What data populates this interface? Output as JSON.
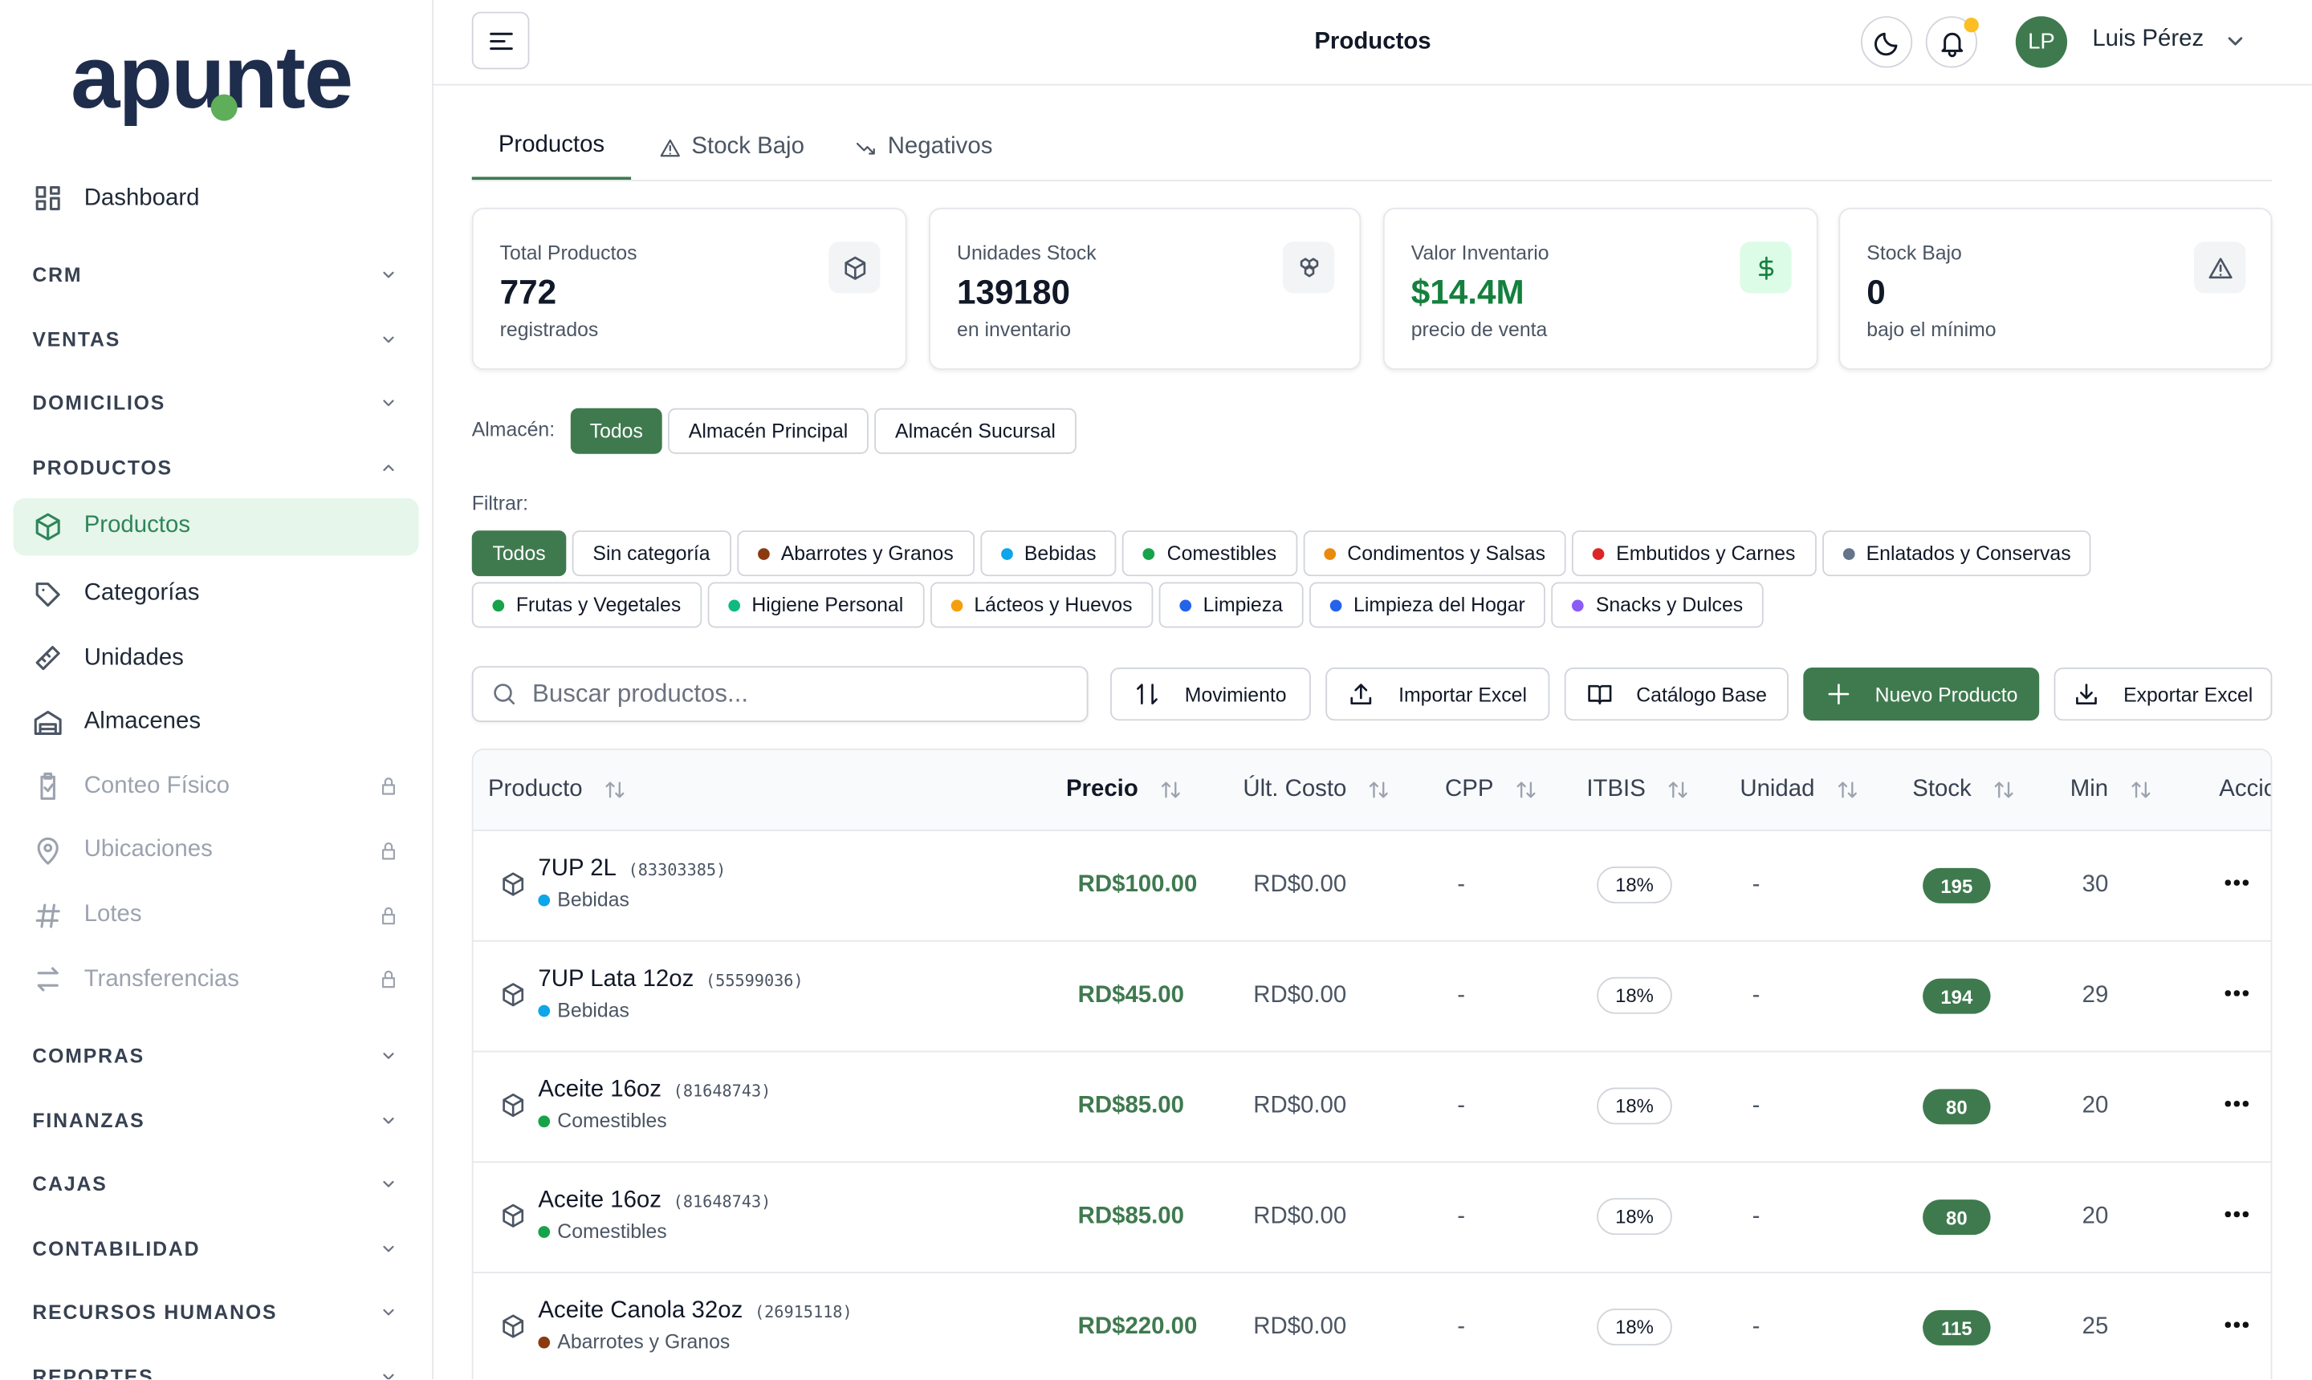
{
  "brand": "apunte",
  "header": {
    "title": "Productos",
    "user_initials": "LP",
    "user_name": "Luis Pérez"
  },
  "sidebar": [
    {
      "label": "Dashboard",
      "kind": "link"
    },
    {
      "label": "CRM",
      "kind": "section"
    },
    {
      "label": "VENTAS",
      "kind": "section"
    },
    {
      "label": "DOMICILIOS",
      "kind": "section"
    },
    {
      "label": "PRODUCTOS",
      "kind": "section",
      "expanded": true
    },
    {
      "label": "Productos",
      "kind": "link",
      "active": true
    },
    {
      "label": "Categorías",
      "kind": "link"
    },
    {
      "label": "Unidades",
      "kind": "link"
    },
    {
      "label": "Almacenes",
      "kind": "link"
    },
    {
      "label": "Conteo Físico",
      "kind": "link",
      "locked": true
    },
    {
      "label": "Ubicaciones",
      "kind": "link",
      "locked": true
    },
    {
      "label": "Lotes",
      "kind": "link",
      "locked": true
    },
    {
      "label": "Transferencias",
      "kind": "link",
      "locked": true
    },
    {
      "label": "COMPRAS",
      "kind": "section"
    },
    {
      "label": "FINANZAS",
      "kind": "section"
    },
    {
      "label": "CAJAS",
      "kind": "section"
    },
    {
      "label": "CONTABILIDAD",
      "kind": "section"
    },
    {
      "label": "RECURSOS HUMANOS",
      "kind": "section"
    },
    {
      "label": "REPORTES",
      "kind": "section"
    }
  ],
  "tabs": {
    "items": [
      "Productos",
      "Stock Bajo",
      "Negativos"
    ],
    "active": 0
  },
  "stats": [
    {
      "label": "Total Productos",
      "value": 772,
      "note": "registrados"
    },
    {
      "label": "Unidades Stock",
      "value": 139180,
      "note": "en inventario"
    },
    {
      "label": "Valor Inventario",
      "value": "$14.4M",
      "note": "precio de venta",
      "color": "#15803d"
    },
    {
      "label": "Stock Bajo",
      "value": 0,
      "note": "bajo el mínimo"
    }
  ],
  "warehouse": {
    "label": "Almacén:",
    "options": [
      "Todos",
      "Almacén Principal",
      "Almacén Sucursal"
    ],
    "selected": 0
  },
  "filter": {
    "label": "Filtrar:",
    "selected": 0,
    "options": [
      {
        "name": "Todos"
      },
      {
        "name": "Sin categoría"
      },
      {
        "name": "Abarrotes y Granos",
        "color": "#8b3a0f"
      },
      {
        "name": "Bebidas",
        "color": "#0ea5e9"
      },
      {
        "name": "Comestibles",
        "color": "#16a34a"
      },
      {
        "name": "Condimentos y Salsas",
        "color": "#ea8a0c"
      },
      {
        "name": "Embutidos y Carnes",
        "color": "#dc2626"
      },
      {
        "name": "Enlatados y Conservas",
        "color": "#64748b"
      },
      {
        "name": "Frutas y Vegetales",
        "color": "#16a34a"
      },
      {
        "name": "Higiene Personal",
        "color": "#10b981"
      },
      {
        "name": "Lácteos y Huevos",
        "color": "#f59e0b"
      },
      {
        "name": "Limpieza",
        "color": "#2563eb"
      },
      {
        "name": "Limpieza del Hogar",
        "color": "#2563eb"
      },
      {
        "name": "Snacks y Dulces",
        "color": "#8b5cf6"
      }
    ]
  },
  "toolbar": {
    "search_placeholder": "Buscar productos...",
    "buttons": [
      "Movimiento",
      "Importar Excel",
      "Catálogo Base",
      "Nuevo Producto",
      "Exportar Excel"
    ],
    "primary": 3
  },
  "table": {
    "columns": [
      "Producto",
      "Precio",
      "Últ. Costo",
      "CPP",
      "ITBIS",
      "Unidad",
      "Stock",
      "Min",
      "Acciones"
    ],
    "rows": [
      {
        "name": "7UP 2L",
        "code": "(83303385)",
        "category": "Bebidas",
        "category_color": "#0ea5e9",
        "price": "RD$100.00",
        "last_cost": "RD$0.00",
        "cpp": "-",
        "itbis": "18%",
        "unit": "-",
        "stock": 195,
        "min": 30
      },
      {
        "name": "7UP Lata 12oz",
        "code": "(55599036)",
        "category": "Bebidas",
        "category_color": "#0ea5e9",
        "price": "RD$45.00",
        "last_cost": "RD$0.00",
        "cpp": "-",
        "itbis": "18%",
        "unit": "-",
        "stock": 194,
        "min": 29
      },
      {
        "name": "Aceite 16oz",
        "code": "(81648743)",
        "category": "Comestibles",
        "category_color": "#16a34a",
        "price": "RD$85.00",
        "last_cost": "RD$0.00",
        "cpp": "-",
        "itbis": "18%",
        "unit": "-",
        "stock": 80,
        "min": 20
      },
      {
        "name": "Aceite 16oz",
        "code": "(81648743)",
        "category": "Comestibles",
        "category_color": "#16a34a",
        "price": "RD$85.00",
        "last_cost": "RD$0.00",
        "cpp": "-",
        "itbis": "18%",
        "unit": "-",
        "stock": 80,
        "min": 20
      },
      {
        "name": "Aceite Canola 32oz",
        "code": "(26915118)",
        "category": "Abarrotes y Granos",
        "category_color": "#8b3a0f",
        "price": "RD$220.00",
        "last_cost": "RD$0.00",
        "cpp": "-",
        "itbis": "18%",
        "unit": "-",
        "stock": 115,
        "min": 25
      }
    ]
  }
}
